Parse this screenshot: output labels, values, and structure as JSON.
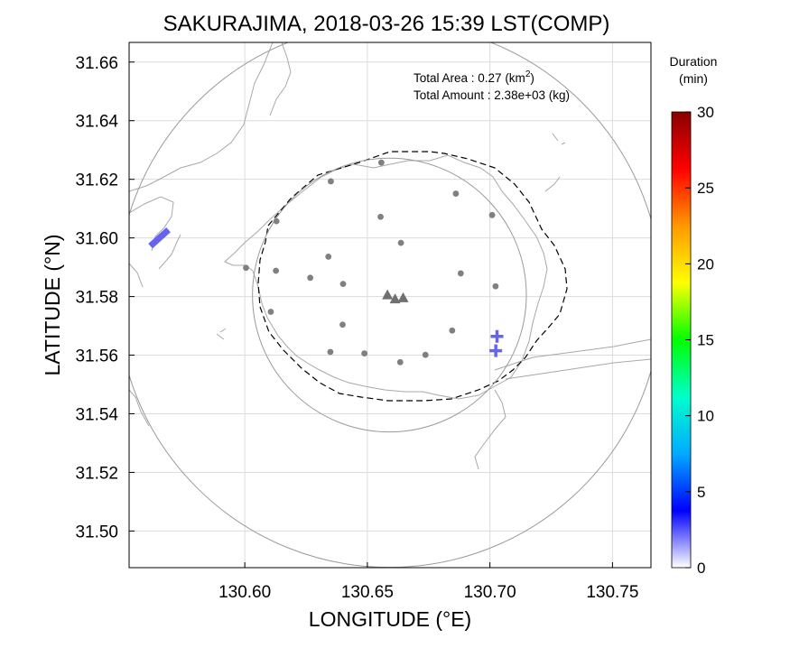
{
  "chart_data": {
    "type": "scatter",
    "title": "SAKURAJIMA, 2018-03-26 15:39 LST(COMP)",
    "xlabel": "LONGITUDE (°E)",
    "ylabel": "LATITUDE (°N)",
    "xlim": [
      130.5528,
      130.7657
    ],
    "ylim": [
      31.4875,
      31.6667
    ],
    "x_ticks": [
      "130.60",
      "130.65",
      "130.70",
      "130.75"
    ],
    "y_ticks": [
      "31.50",
      "31.52",
      "31.54",
      "31.56",
      "31.58",
      "31.60",
      "31.62",
      "31.64",
      "31.66"
    ],
    "grid": true,
    "annotations": {
      "area_label": "Total Area   : 0.27 (km",
      "area_sup": "2",
      "area_close": ")",
      "amount_label": "Total Amount : 2.38e+03 (kg)"
    },
    "colorbar": {
      "title_line1": "Duration",
      "title_line2": "(min)",
      "min": 0,
      "max": 30,
      "tick_labels": [
        "0",
        "5",
        "10",
        "15",
        "20",
        "25",
        "30"
      ],
      "colors": [
        "#ffffff",
        "#0000ff",
        "#00aaff",
        "#00ffcc",
        "#00ff00",
        "#ffff00",
        "#ff9900",
        "#ff0000",
        "#880000"
      ]
    },
    "series": [
      {
        "kind": "station",
        "points": [
          {
            "lon": 130.6557,
            "lat": 31.6257
          },
          {
            "lon": 130.6351,
            "lat": 31.6193
          },
          {
            "lon": 130.6861,
            "lat": 31.6151
          },
          {
            "lon": 130.6129,
            "lat": 31.6057
          },
          {
            "lon": 130.6554,
            "lat": 31.6072
          },
          {
            "lon": 130.7009,
            "lat": 31.6078
          },
          {
            "lon": 130.6637,
            "lat": 31.5983
          },
          {
            "lon": 130.6005,
            "lat": 31.5898
          },
          {
            "lon": 130.6127,
            "lat": 31.5888
          },
          {
            "lon": 130.6341,
            "lat": 31.5936
          },
          {
            "lon": 130.6267,
            "lat": 31.5864
          },
          {
            "lon": 130.6401,
            "lat": 31.5843
          },
          {
            "lon": 130.6881,
            "lat": 31.5879
          },
          {
            "lon": 130.7023,
            "lat": 31.5835
          },
          {
            "lon": 130.6106,
            "lat": 31.5748
          },
          {
            "lon": 130.6399,
            "lat": 31.5704
          },
          {
            "lon": 130.6846,
            "lat": 31.5684
          },
          {
            "lon": 130.6349,
            "lat": 31.5611
          },
          {
            "lon": 130.6488,
            "lat": 31.5606
          },
          {
            "lon": 130.6737,
            "lat": 31.5601
          },
          {
            "lon": 130.6634,
            "lat": 31.5576
          }
        ]
      },
      {
        "kind": "vent",
        "points": [
          {
            "lon": 130.6582,
            "lat": 31.5806
          },
          {
            "lon": 130.6613,
            "lat": 31.5792
          },
          {
            "lon": 130.6646,
            "lat": 31.5796
          }
        ]
      },
      {
        "kind": "ash-observation",
        "duration_min": 4,
        "points": [
          {
            "lon": 130.7029,
            "lat": 31.5664,
            "marker": "plus"
          },
          {
            "lon": 130.7024,
            "lat": 31.5615,
            "marker": "plus"
          },
          {
            "lon": 130.5648,
            "lat": 31.5997,
            "marker": "bar"
          }
        ]
      }
    ],
    "range_circles": [
      {
        "center_lon": 130.659,
        "center_lat": 31.5805,
        "radius_deg_lat": 0.0467
      },
      {
        "center_lon": 130.659,
        "center_lat": 31.5805,
        "radius_deg_lat": 0.0929
      }
    ]
  }
}
